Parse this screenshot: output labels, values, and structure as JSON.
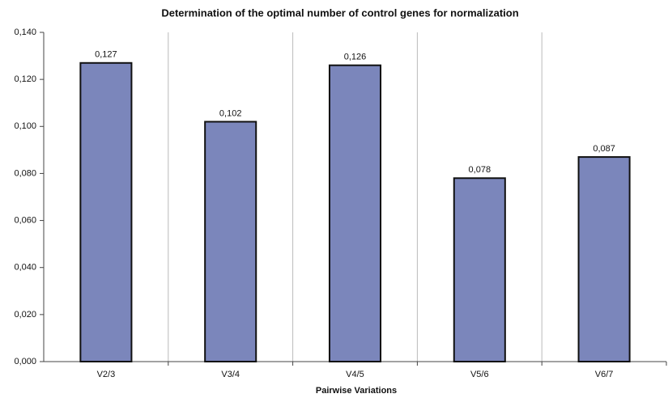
{
  "chart_data": {
    "type": "bar",
    "title": "Determination of the optimal number of control genes for normalization",
    "x_label": "Pairwise Variations",
    "categories": [
      "V2/3",
      "V3/4",
      "V4/5",
      "V5/6",
      "V6/7"
    ],
    "values": [
      0.127,
      0.102,
      0.126,
      0.078,
      0.087
    ],
    "value_labels": [
      "0,127",
      "0,102",
      "0,126",
      "0,078",
      "0,087"
    ],
    "color": "#7b86bb",
    "ylim": [
      0,
      0.14
    ],
    "yticks": [
      {
        "value": 0,
        "label": "0,000"
      },
      {
        "value": 0.02,
        "label": "0,020"
      },
      {
        "value": 0.04,
        "label": "0,040"
      },
      {
        "value": 0.06,
        "label": "0,060"
      },
      {
        "value": 0.08,
        "label": "0,080"
      },
      {
        "value": 0.1,
        "label": "0,100"
      },
      {
        "value": 0.12,
        "label": "0,120"
      },
      {
        "value": 0.14,
        "label": "0,140"
      }
    ],
    "grid": true
  }
}
